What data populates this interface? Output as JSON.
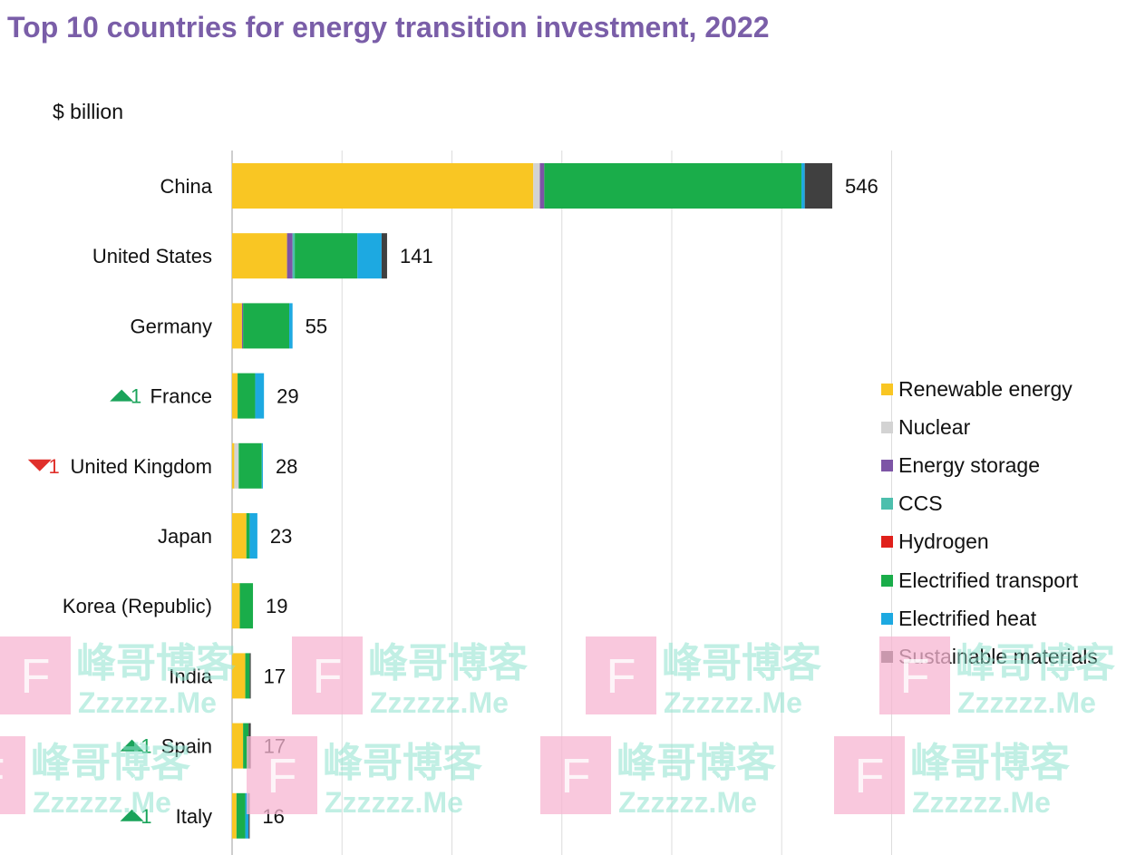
{
  "chart_data": {
    "type": "bar",
    "orientation": "horizontal",
    "stacked": true,
    "title": "Top 10 countries for energy transition investment, 2022",
    "unit_label": "$ billion",
    "xlim": [
      0,
      600
    ],
    "grid": true,
    "legend_position": "right",
    "categories": [
      "China",
      "United States",
      "Germany",
      "France",
      "United Kingdom",
      "Japan",
      "Korea (Republic)",
      "India",
      "Spain",
      "Italy"
    ],
    "totals": [
      546,
      141,
      55,
      29,
      28,
      23,
      19,
      17,
      17,
      16
    ],
    "rank_changes": [
      {
        "country": "France",
        "direction": "up",
        "value": "1"
      },
      {
        "country": "United Kingdom",
        "direction": "down",
        "value": "1"
      },
      {
        "country": "Spain",
        "direction": "up",
        "value": "1"
      },
      {
        "country": "Italy",
        "direction": "up",
        "value": "1"
      }
    ],
    "series": [
      {
        "name": "Renewable energy",
        "color": "#f9c623",
        "values": [
          274,
          50,
          9,
          5,
          2,
          13,
          7,
          12,
          10,
          4
        ]
      },
      {
        "name": "Nuclear",
        "color": "#d3d3d3",
        "values": [
          6,
          0,
          0,
          0,
          4,
          0,
          0,
          0,
          0,
          0
        ]
      },
      {
        "name": "Energy storage",
        "color": "#7d55a6",
        "values": [
          4,
          5,
          1,
          0,
          0,
          0,
          0,
          0,
          0,
          0
        ]
      },
      {
        "name": "CCS",
        "color": "#4dbfad",
        "values": [
          0,
          2,
          0,
          0,
          0,
          0,
          0,
          0,
          0,
          0
        ]
      },
      {
        "name": "Hydrogen",
        "color": "#e0201b",
        "values": [
          0,
          0,
          0,
          0,
          0,
          0,
          0,
          0,
          0,
          0
        ]
      },
      {
        "name": "Electrified transport",
        "color": "#1aad4a",
        "values": [
          234,
          57,
          42,
          16,
          21,
          3,
          12,
          4,
          5,
          8
        ]
      },
      {
        "name": "Electrified heat",
        "color": "#1da9e1",
        "values": [
          3,
          22,
          3,
          8,
          1,
          7,
          0,
          0,
          0,
          3
        ]
      },
      {
        "name": "Sustainable materials",
        "color": "#404040",
        "values": [
          25,
          5,
          0,
          0,
          0,
          0,
          0,
          1,
          2,
          1
        ]
      }
    ]
  },
  "watermark": {
    "brand": "峰哥博客",
    "domain": "Zzzzzz.Me",
    "logo_letter": "F"
  }
}
